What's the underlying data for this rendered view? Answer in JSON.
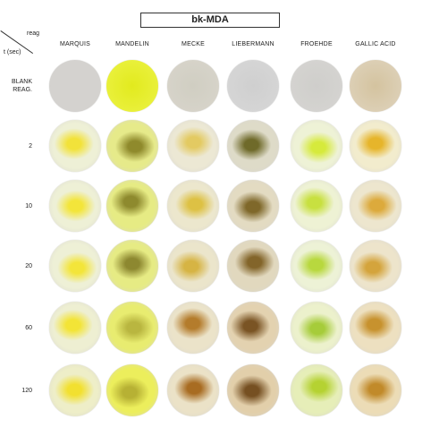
{
  "title": "bk-MDA",
  "corner": {
    "top_label": "reag",
    "bottom_label": "t (sec)"
  },
  "reagents": [
    "MARQUIS",
    "MANDELIN",
    "MECKE",
    "LIEBERMANN",
    "FROEHDE",
    "GALLIC ACID"
  ],
  "rows": [
    {
      "label": "BLANK\nREAG.",
      "colors": [
        {
          "bg": "#d4d2cf",
          "spot": "#d4d2cf"
        },
        {
          "bg": "#e9f03a",
          "spot": "#e2ea1e"
        },
        {
          "bg": "#d6d3c9",
          "spot": "#d0cec2"
        },
        {
          "bg": "#d5d5d5",
          "spot": "#cfcfcf"
        },
        {
          "bg": "#d4d3d0",
          "spot": "#cfcecb"
        },
        {
          "bg": "#dccfb5",
          "spot": "#d4c39f"
        }
      ]
    },
    {
      "label": "2",
      "colors": [
        {
          "bg": "#eef0d6",
          "spot": "#f2e23a"
        },
        {
          "bg": "#e6ea8a",
          "spot": "#8f8a2c"
        },
        {
          "bg": "#ece8d4",
          "spot": "#e3ca62"
        },
        {
          "bg": "#dedbc8",
          "spot": "#6f6a2a"
        },
        {
          "bg": "#eef2d6",
          "spot": "#d6ea3c"
        },
        {
          "bg": "#f2eccd",
          "spot": "#e6b52b"
        }
      ]
    },
    {
      "label": "10",
      "colors": [
        {
          "bg": "#eef0d6",
          "spot": "#f3e53a"
        },
        {
          "bg": "#e6eb84",
          "spot": "#8e8a2e"
        },
        {
          "bg": "#ece7cd",
          "spot": "#ddc144"
        },
        {
          "bg": "#e3dbc2",
          "spot": "#7f682a"
        },
        {
          "bg": "#eef2d4",
          "spot": "#c8e040"
        },
        {
          "bg": "#ede6ce",
          "spot": "#dcaa3c"
        }
      ]
    },
    {
      "label": "20",
      "colors": [
        {
          "bg": "#eef0d6",
          "spot": "#f3e53a"
        },
        {
          "bg": "#e6eb84",
          "spot": "#8d8830"
        },
        {
          "bg": "#ebe5cb",
          "spot": "#d6b444"
        },
        {
          "bg": "#e1d8be",
          "spot": "#83652a"
        },
        {
          "bg": "#edf2d6",
          "spot": "#b8d83e"
        },
        {
          "bg": "#ede4cb",
          "spot": "#d4a43c"
        }
      ]
    },
    {
      "label": "60",
      "colors": [
        {
          "bg": "#eeefd2",
          "spot": "#f3e436"
        },
        {
          "bg": "#e8ec70",
          "spot": "#b9b640"
        },
        {
          "bg": "#ebe3c9",
          "spot": "#b47c2c"
        },
        {
          "bg": "#e3d2b0",
          "spot": "#7a5424"
        },
        {
          "bg": "#ecf1cc",
          "spot": "#a6cc3a"
        },
        {
          "bg": "#ede0c0",
          "spot": "#c7922e"
        }
      ]
    },
    {
      "label": "120",
      "colors": [
        {
          "bg": "#eeeec8",
          "spot": "#f2e030"
        },
        {
          "bg": "#ecee5c",
          "spot": "#b7b134"
        },
        {
          "bg": "#ebe2c7",
          "spot": "#a86c22"
        },
        {
          "bg": "#e2cfaa",
          "spot": "#765022"
        },
        {
          "bg": "#e6eeb8",
          "spot": "#b5d232"
        },
        {
          "bg": "#ecdcb6",
          "spot": "#c18a2a"
        }
      ]
    }
  ]
}
